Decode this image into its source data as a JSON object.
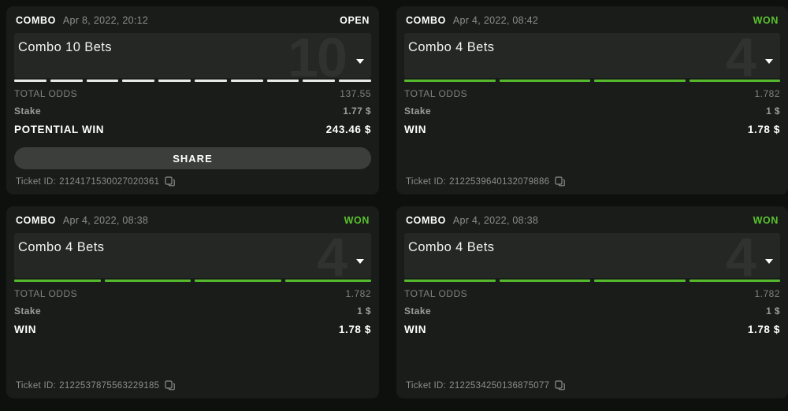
{
  "colors": {
    "page_bg": "#0e100e",
    "card_bg": "#1a1c1a",
    "panel_bg": "#242724",
    "open_status": "#ffffff",
    "won_status": "#59c12d",
    "open_segment": "#e8e8e8",
    "won_segment": "#55b82d"
  },
  "cards": [
    {
      "type_label": "COMBO",
      "date": "Apr 8, 2022, 20:12",
      "status": "OPEN",
      "title": "Combo 10 Bets",
      "ghost_number": "10",
      "segments": 10,
      "total_odds_label": "TOTAL ODDS",
      "total_odds_value": "137.55",
      "stake_label": "Stake",
      "stake_value": "1.77 $",
      "win_label": "POTENTIAL WIN",
      "win_value": "243.46 $",
      "share_label": "SHARE",
      "ticket_label": "Ticket ID:",
      "ticket_id": "2124171530027020361"
    },
    {
      "type_label": "COMBO",
      "date": "Apr 4, 2022, 08:42",
      "status": "WON",
      "title": "Combo 4 Bets",
      "ghost_number": "4",
      "segments": 4,
      "total_odds_label": "TOTAL ODDS",
      "total_odds_value": "1.782",
      "stake_label": "Stake",
      "stake_value": "1 $",
      "win_label": "WIN",
      "win_value": "1.78 $",
      "share_label": "",
      "ticket_label": "Ticket ID:",
      "ticket_id": "2122539640132079886"
    },
    {
      "type_label": "COMBO",
      "date": "Apr 4, 2022, 08:38",
      "status": "WON",
      "title": "Combo 4 Bets",
      "ghost_number": "4",
      "segments": 4,
      "total_odds_label": "TOTAL ODDS",
      "total_odds_value": "1.782",
      "stake_label": "Stake",
      "stake_value": "1 $",
      "win_label": "WIN",
      "win_value": "1.78 $",
      "share_label": "",
      "ticket_label": "Ticket ID:",
      "ticket_id": "2122537875563229185"
    },
    {
      "type_label": "COMBO",
      "date": "Apr 4, 2022, 08:38",
      "status": "WON",
      "title": "Combo 4 Bets",
      "ghost_number": "4",
      "segments": 4,
      "total_odds_label": "TOTAL ODDS",
      "total_odds_value": "1.782",
      "stake_label": "Stake",
      "stake_value": "1 $",
      "win_label": "WIN",
      "win_value": "1.78 $",
      "share_label": "",
      "ticket_label": "Ticket ID:",
      "ticket_id": "2122534250136875077"
    }
  ]
}
